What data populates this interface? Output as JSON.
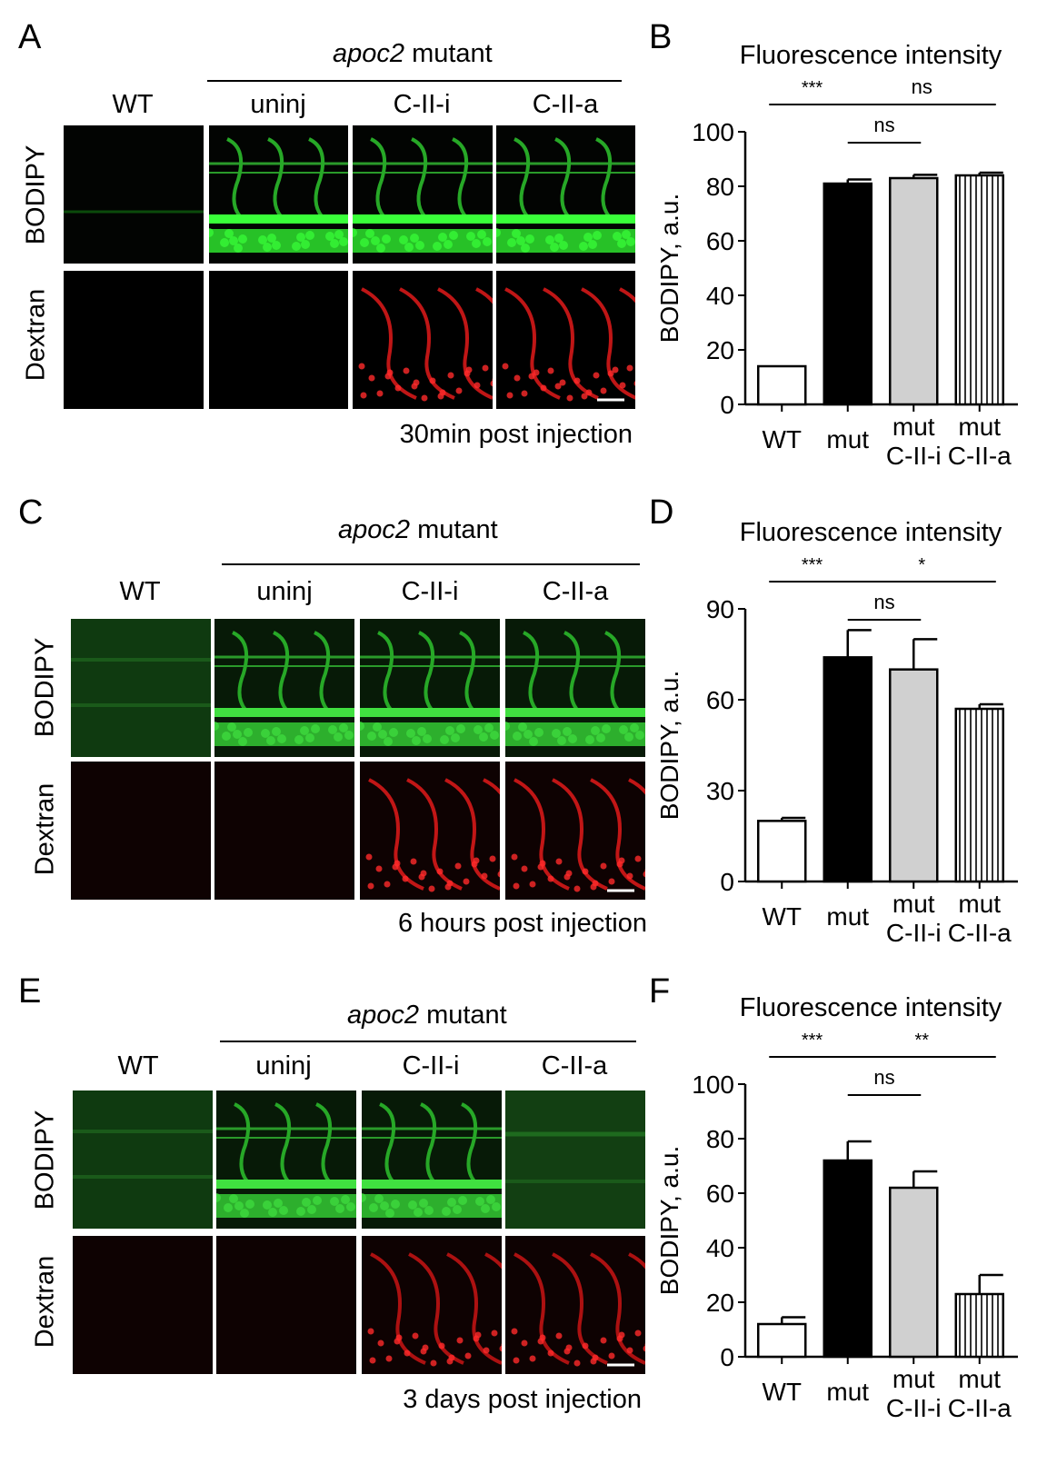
{
  "panels": [
    {
      "letter": "A",
      "header_italic": "apoc2",
      "header_rest": " mutant",
      "columns": [
        "WT",
        "uninj",
        "C-II-i",
        "C-II-a"
      ],
      "rows": [
        "BODIPY",
        "Dextran"
      ],
      "caption": "30min post injection",
      "style": "sharp"
    },
    {
      "letter": "C",
      "header_italic": "apoc2",
      "header_rest": " mutant",
      "columns": [
        "WT",
        "uninj",
        "C-II-i",
        "C-II-a"
      ],
      "rows": [
        "BODIPY",
        "Dextran"
      ],
      "caption": "6 hours post injection",
      "style": "dim"
    },
    {
      "letter": "E",
      "header_italic": "apoc2",
      "header_rest": " mutant",
      "columns": [
        "WT",
        "uninj",
        "C-II-i",
        "C-II-a"
      ],
      "rows": [
        "BODIPY",
        "Dextran"
      ],
      "caption": "3 days post injection",
      "style": "late"
    }
  ],
  "chart_data": [
    {
      "panel": "B",
      "type": "bar",
      "title": "Fluorescence intensity",
      "ylabel": "BODIPY, a.u.",
      "categories": [
        "WT",
        "mut",
        "mut\nC-II-i",
        "mut\nC-II-a"
      ],
      "values": [
        14,
        81,
        83,
        84
      ],
      "errors": [
        0,
        1.5,
        1.2,
        1
      ],
      "ylim": [
        0,
        100
      ],
      "yticks": [
        0,
        20,
        40,
        60,
        80,
        100
      ],
      "fills": [
        "white",
        "black",
        "gray",
        "striped"
      ],
      "significance": [
        {
          "from": 0,
          "to": 1,
          "label": "***",
          "level": 1
        },
        {
          "from": 1,
          "to": 3,
          "label": "ns",
          "level": 1
        },
        {
          "from": 1,
          "to": 2,
          "label": "ns",
          "level": 2
        }
      ]
    },
    {
      "panel": "D",
      "type": "bar",
      "title": "Fluorescence intensity",
      "ylabel": "BODIPY, a.u.",
      "categories": [
        "WT",
        "mut",
        "mut\nC-II-i",
        "mut\nC-II-a"
      ],
      "values": [
        20,
        74,
        70,
        57
      ],
      "errors": [
        1,
        9,
        10,
        1.5
      ],
      "ylim": [
        0,
        90
      ],
      "yticks": [
        0,
        30,
        60,
        90
      ],
      "fills": [
        "white",
        "black",
        "gray",
        "striped"
      ],
      "significance": [
        {
          "from": 0,
          "to": 1,
          "label": "***",
          "level": 1
        },
        {
          "from": 1,
          "to": 3,
          "label": "*",
          "level": 1
        },
        {
          "from": 1,
          "to": 2,
          "label": "ns",
          "level": 2
        }
      ]
    },
    {
      "panel": "F",
      "type": "bar",
      "title": "Fluorescence intensity",
      "ylabel": "BODIPY, a.u.",
      "categories": [
        "WT",
        "mut",
        "mut\nC-II-i",
        "mut\nC-II-a"
      ],
      "values": [
        12,
        72,
        62,
        23
      ],
      "errors": [
        2.5,
        7,
        6,
        7
      ],
      "ylim": [
        0,
        100
      ],
      "yticks": [
        0,
        20,
        40,
        60,
        80,
        100
      ],
      "fills": [
        "white",
        "black",
        "gray",
        "striped"
      ],
      "significance": [
        {
          "from": 0,
          "to": 1,
          "label": "***",
          "level": 1
        },
        {
          "from": 1,
          "to": 3,
          "label": "**",
          "level": 1
        },
        {
          "from": 1,
          "to": 2,
          "label": "ns",
          "level": 2
        }
      ]
    }
  ]
}
